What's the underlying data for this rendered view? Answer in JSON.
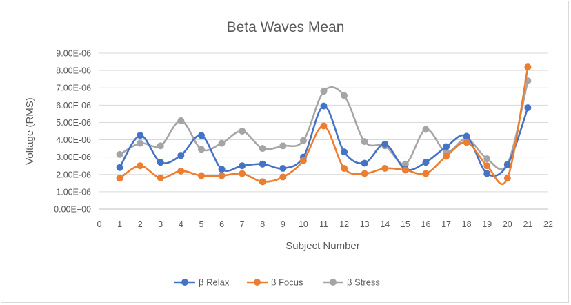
{
  "chart_data": {
    "type": "line",
    "title": "Beta Waves Mean",
    "xlabel": "Subject Number",
    "ylabel": "Voltage (RMS)",
    "xlim": [
      0,
      22
    ],
    "ylim": [
      0,
      9e-06
    ],
    "x_ticks": [
      "0",
      "1",
      "2",
      "3",
      "4",
      "5",
      "6",
      "7",
      "8",
      "9",
      "10",
      "11",
      "12",
      "13",
      "14",
      "15",
      "16",
      "17",
      "18",
      "19",
      "20",
      "21",
      "22"
    ],
    "y_ticks": [
      "0.00E+00",
      "1.00E-06",
      "2.00E-06",
      "3.00E-06",
      "4.00E-06",
      "5.00E-06",
      "6.00E-06",
      "7.00E-06",
      "8.00E-06",
      "9.00E-06"
    ],
    "grid": true,
    "legend_position": "bottom",
    "x": [
      1,
      2,
      3,
      4,
      5,
      6,
      7,
      8,
      9,
      10,
      11,
      12,
      13,
      14,
      15,
      16,
      17,
      18,
      19,
      20,
      21
    ],
    "series": [
      {
        "name": "β Relax",
        "color": "#4472C4",
        "values": [
          2.4e-06,
          4.25e-06,
          2.7e-06,
          3.1e-06,
          4.25e-06,
          2.3e-06,
          2.5e-06,
          2.6e-06,
          2.35e-06,
          3e-06,
          5.95e-06,
          3.3e-06,
          2.65e-06,
          3.75e-06,
          2.3e-06,
          2.7e-06,
          3.6e-06,
          4.2e-06,
          2.05e-06,
          2.55e-06,
          5.85e-06
        ]
      },
      {
        "name": "β Focus",
        "color": "#ED7D31",
        "values": [
          1.78e-06,
          2.5e-06,
          1.8e-06,
          2.2e-06,
          1.93e-06,
          1.93e-06,
          2.05e-06,
          1.58e-06,
          1.85e-06,
          2.8e-06,
          4.8e-06,
          2.35e-06,
          2.05e-06,
          2.35e-06,
          2.25e-06,
          2.05e-06,
          3.05e-06,
          3.85e-06,
          2.5e-06,
          1.78e-06,
          8.2e-06
        ]
      },
      {
        "name": "β Stress",
        "color": "#A5A5A5",
        "values": [
          3.15e-06,
          3.8e-06,
          3.65e-06,
          5.1e-06,
          3.45e-06,
          3.8e-06,
          4.5e-06,
          3.5e-06,
          3.65e-06,
          3.95e-06,
          6.8e-06,
          6.55e-06,
          3.9e-06,
          3.65e-06,
          2.6e-06,
          4.6e-06,
          3.3e-06,
          4.05e-06,
          2.9e-06,
          2.6e-06,
          7.4e-06
        ]
      }
    ]
  }
}
